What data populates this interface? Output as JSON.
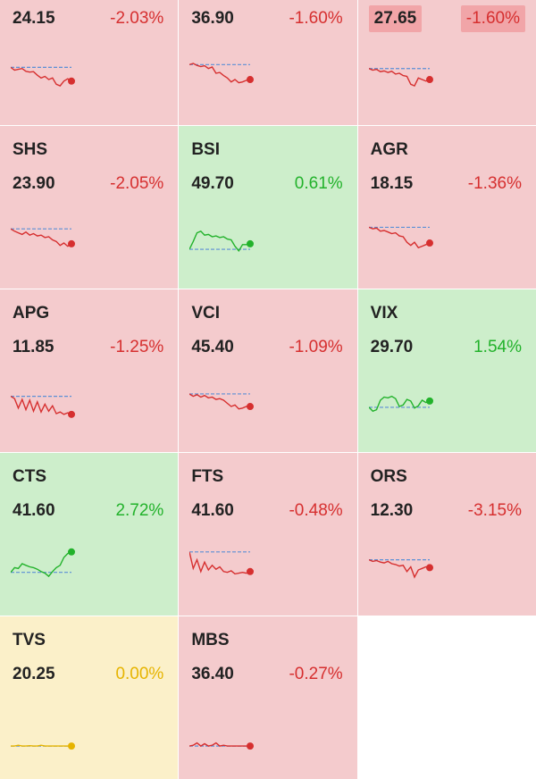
{
  "colors": {
    "down": "#d62f2f",
    "up": "#22b22b",
    "flat": "#e6b400",
    "ref": "#5b8fd6"
  },
  "tiles": [
    {
      "symbol": "",
      "price": "24.15",
      "change": "-2.03%",
      "trend": "down",
      "spark": [
        0.35,
        0.42,
        0.4,
        0.38,
        0.45,
        0.47,
        0.46,
        0.55,
        0.62,
        0.58,
        0.66,
        0.62,
        0.78,
        0.82,
        0.7,
        0.64,
        0.7
      ]
    },
    {
      "symbol": "",
      "price": "36.90",
      "change": "-1.60%",
      "trend": "down",
      "spark": [
        0.28,
        0.25,
        0.3,
        0.33,
        0.31,
        0.38,
        0.34,
        0.5,
        0.48,
        0.56,
        0.62,
        0.72,
        0.66,
        0.74,
        0.72,
        0.68,
        0.66
      ]
    },
    {
      "symbol": "",
      "price": "27.65",
      "change": "-1.60%",
      "trend": "down",
      "highlighted": true,
      "spark": [
        0.38,
        0.42,
        0.4,
        0.46,
        0.44,
        0.48,
        0.45,
        0.52,
        0.5,
        0.56,
        0.58,
        0.78,
        0.82,
        0.62,
        0.66,
        0.7,
        0.66
      ]
    },
    {
      "symbol": "SHS",
      "price": "23.90",
      "change": "-2.05%",
      "trend": "down",
      "spark": [
        0.3,
        0.36,
        0.4,
        0.44,
        0.38,
        0.46,
        0.42,
        0.48,
        0.46,
        0.52,
        0.5,
        0.58,
        0.62,
        0.72,
        0.66,
        0.74,
        0.68
      ]
    },
    {
      "symbol": "BSI",
      "price": "49.70",
      "change": "0.61%",
      "trend": "up",
      "spark": [
        0.82,
        0.62,
        0.4,
        0.36,
        0.46,
        0.44,
        0.5,
        0.48,
        0.52,
        0.5,
        0.56,
        0.58,
        0.74,
        0.86,
        0.7,
        0.7,
        0.68
      ]
    },
    {
      "symbol": "AGR",
      "price": "18.15",
      "change": "-1.36%",
      "trend": "down",
      "spark": [
        0.26,
        0.3,
        0.28,
        0.36,
        0.34,
        0.38,
        0.42,
        0.4,
        0.48,
        0.5,
        0.64,
        0.72,
        0.64,
        0.78,
        0.74,
        0.7,
        0.66
      ]
    },
    {
      "symbol": "APG",
      "price": "11.85",
      "change": "-1.25%",
      "trend": "down",
      "spark": [
        0.4,
        0.46,
        0.7,
        0.48,
        0.74,
        0.5,
        0.78,
        0.54,
        0.8,
        0.6,
        0.78,
        0.64,
        0.84,
        0.8,
        0.86,
        0.82,
        0.86
      ]
    },
    {
      "symbol": "VCI",
      "price": "45.40",
      "change": "-1.09%",
      "trend": "down",
      "spark": [
        0.34,
        0.4,
        0.36,
        0.42,
        0.38,
        0.44,
        0.42,
        0.48,
        0.46,
        0.5,
        0.58,
        0.66,
        0.62,
        0.72,
        0.7,
        0.66,
        0.66
      ]
    },
    {
      "symbol": "VIX",
      "price": "29.70",
      "change": "1.54%",
      "trend": "up",
      "spark": [
        0.68,
        0.78,
        0.74,
        0.5,
        0.42,
        0.44,
        0.4,
        0.46,
        0.66,
        0.62,
        0.48,
        0.52,
        0.7,
        0.64,
        0.5,
        0.56,
        0.52
      ]
    },
    {
      "symbol": "CTS",
      "price": "41.60",
      "change": "2.72%",
      "trend": "up",
      "spark": [
        0.72,
        0.6,
        0.62,
        0.5,
        0.54,
        0.58,
        0.6,
        0.64,
        0.7,
        0.74,
        0.82,
        0.7,
        0.6,
        0.54,
        0.34,
        0.24,
        0.2
      ]
    },
    {
      "symbol": "FTS",
      "price": "41.60",
      "change": "-0.48%",
      "trend": "down",
      "spark": [
        0.2,
        0.62,
        0.4,
        0.7,
        0.46,
        0.66,
        0.54,
        0.64,
        0.58,
        0.7,
        0.72,
        0.68,
        0.76,
        0.74,
        0.72,
        0.74,
        0.7
      ]
    },
    {
      "symbol": "ORS",
      "price": "12.30",
      "change": "-3.15%",
      "trend": "down",
      "spark": [
        0.4,
        0.44,
        0.42,
        0.46,
        0.48,
        0.44,
        0.5,
        0.52,
        0.56,
        0.54,
        0.7,
        0.58,
        0.84,
        0.66,
        0.62,
        0.58,
        0.6
      ]
    },
    {
      "symbol": "TVS",
      "price": "20.25",
      "change": "0.00%",
      "trend": "flat",
      "spark": [
        0.98,
        0.98,
        0.96,
        0.98,
        0.98,
        0.97,
        0.98,
        0.98,
        0.96,
        0.98,
        0.98,
        0.98,
        0.98,
        0.98,
        0.98,
        0.98,
        0.98
      ]
    },
    {
      "symbol": "MBS",
      "price": "36.40",
      "change": "-0.27%",
      "trend": "down",
      "spark": [
        0.98,
        0.96,
        0.9,
        0.98,
        0.92,
        0.98,
        0.96,
        0.9,
        0.98,
        0.96,
        0.98,
        0.98,
        0.98,
        0.98,
        0.98,
        0.98,
        0.98
      ]
    }
  ]
}
